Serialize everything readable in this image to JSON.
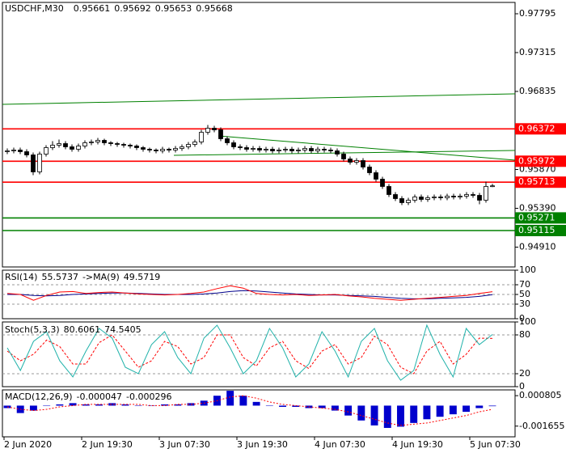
{
  "chart_data": {
    "type": "candlestick",
    "symbol": "USDCHF,M30",
    "ylim": [
      0.94665,
      0.97935
    ],
    "yticks": [
      0.97795,
      0.97315,
      0.96835,
      {
        "value": 0.9587,
        "label": "0.95870"
      },
      {
        "value": 0.9539,
        "label": "0.95390"
      },
      {
        "value": 0.9491,
        "label": "0.94910"
      }
    ],
    "time_labels": [
      "2 Jun 2020",
      "2 Jun 19:30",
      "3 Jun 07:30",
      "3 Jun 19:30",
      "4 Jun 07:30",
      "4 Jun 19:30",
      "5 Jun 07:30"
    ],
    "levels": [
      {
        "value": 0.96372,
        "color": "#ff0000"
      },
      {
        "value": 0.95972,
        "color": "#ff0000"
      },
      {
        "value": 0.95713,
        "color": "#ff0000"
      },
      {
        "value": 0.95271,
        "color": "#008000"
      },
      {
        "value": 0.95115,
        "color": "#008000"
      }
    ],
    "trend_lines": [
      {
        "from": 0.96675,
        "to": 0.96805,
        "color": "#008000"
      },
      {
        "from": 0.96285,
        "to": 0.95985,
        "color": "#008000"
      },
      {
        "from": 0.96045,
        "to": 0.96105,
        "color": "#008000"
      }
    ],
    "candles": [
      [
        0.9609,
        0.9613,
        0.9606,
        0.961
      ],
      [
        0.961,
        0.9614,
        0.9607,
        0.9611
      ],
      [
        0.9611,
        0.9614,
        0.9606,
        0.9609
      ],
      [
        0.9609,
        0.9612,
        0.9602,
        0.9605
      ],
      [
        0.9605,
        0.9608,
        0.958,
        0.9584
      ],
      [
        0.9584,
        0.9609,
        0.9581,
        0.9606
      ],
      [
        0.9606,
        0.9617,
        0.9603,
        0.9614
      ],
      [
        0.9614,
        0.9622,
        0.9611,
        0.9617
      ],
      [
        0.9617,
        0.9624,
        0.9614,
        0.9619
      ],
      [
        0.9619,
        0.9622,
        0.9612,
        0.9615
      ],
      [
        0.9615,
        0.9618,
        0.9609,
        0.9612
      ],
      [
        0.9612,
        0.9619,
        0.9609,
        0.9616
      ],
      [
        0.9616,
        0.9623,
        0.9613,
        0.962
      ],
      [
        0.962,
        0.9624,
        0.9617,
        0.9621
      ],
      [
        0.9621,
        0.9626,
        0.9618,
        0.9623
      ],
      [
        0.9623,
        0.9625,
        0.9617,
        0.962
      ],
      [
        0.962,
        0.9622,
        0.9616,
        0.9619
      ],
      [
        0.9619,
        0.9621,
        0.9615,
        0.9618
      ],
      [
        0.9618,
        0.962,
        0.9614,
        0.9617
      ],
      [
        0.9617,
        0.9619,
        0.9613,
        0.9616
      ],
      [
        0.9616,
        0.9618,
        0.9611,
        0.9614
      ],
      [
        0.9614,
        0.9616,
        0.9609,
        0.9612
      ],
      [
        0.9612,
        0.9614,
        0.9608,
        0.9611
      ],
      [
        0.9611,
        0.9613,
        0.9607,
        0.961
      ],
      [
        0.961,
        0.9615,
        0.9607,
        0.9612
      ],
      [
        0.9612,
        0.9614,
        0.9608,
        0.9611
      ],
      [
        0.9611,
        0.9616,
        0.9608,
        0.9613
      ],
      [
        0.9613,
        0.9618,
        0.961,
        0.9615
      ],
      [
        0.9615,
        0.9621,
        0.9612,
        0.9618
      ],
      [
        0.9618,
        0.9624,
        0.9615,
        0.9621
      ],
      [
        0.9621,
        0.9636,
        0.9618,
        0.9633
      ],
      [
        0.9633,
        0.9642,
        0.963,
        0.9638
      ],
      [
        0.9638,
        0.9641,
        0.9633,
        0.9636
      ],
      [
        0.9636,
        0.9639,
        0.9622,
        0.9625
      ],
      [
        0.9625,
        0.9628,
        0.9617,
        0.962
      ],
      [
        0.962,
        0.9623,
        0.9612,
        0.9615
      ],
      [
        0.9615,
        0.9618,
        0.9611,
        0.9614
      ],
      [
        0.9614,
        0.9617,
        0.9609,
        0.9612
      ],
      [
        0.9612,
        0.9616,
        0.9609,
        0.9613
      ],
      [
        0.9613,
        0.9616,
        0.9608,
        0.9611
      ],
      [
        0.9611,
        0.9615,
        0.9608,
        0.9612
      ],
      [
        0.9612,
        0.9615,
        0.9607,
        0.961
      ],
      [
        0.961,
        0.9614,
        0.9607,
        0.9611
      ],
      [
        0.9611,
        0.9615,
        0.9608,
        0.9612
      ],
      [
        0.9612,
        0.9615,
        0.9607,
        0.961
      ],
      [
        0.961,
        0.9614,
        0.9607,
        0.9611
      ],
      [
        0.9611,
        0.9616,
        0.9608,
        0.9613
      ],
      [
        0.9613,
        0.9616,
        0.9607,
        0.961
      ],
      [
        0.961,
        0.9615,
        0.9607,
        0.9612
      ],
      [
        0.9612,
        0.9615,
        0.9608,
        0.9611
      ],
      [
        0.9611,
        0.9614,
        0.9607,
        0.961
      ],
      [
        0.961,
        0.9613,
        0.9603,
        0.9606
      ],
      [
        0.9606,
        0.9609,
        0.9597,
        0.96
      ],
      [
        0.96,
        0.9603,
        0.9593,
        0.9596
      ],
      [
        0.9596,
        0.9601,
        0.9593,
        0.9598
      ],
      [
        0.9598,
        0.9601,
        0.9587,
        0.959
      ],
      [
        0.959,
        0.9593,
        0.958,
        0.9583
      ],
      [
        0.9583,
        0.9586,
        0.9572,
        0.9575
      ],
      [
        0.9575,
        0.9578,
        0.9563,
        0.9566
      ],
      [
        0.9566,
        0.9569,
        0.9553,
        0.9556
      ],
      [
        0.9556,
        0.9559,
        0.9548,
        0.9551
      ],
      [
        0.9551,
        0.9554,
        0.9543,
        0.9546
      ],
      [
        0.9546,
        0.9552,
        0.9543,
        0.9549
      ],
      [
        0.9549,
        0.9556,
        0.9546,
        0.9553
      ],
      [
        0.9553,
        0.9556,
        0.9547,
        0.955
      ],
      [
        0.955,
        0.9555,
        0.9547,
        0.9552
      ],
      [
        0.9552,
        0.9556,
        0.9549,
        0.9553
      ],
      [
        0.9553,
        0.9556,
        0.9549,
        0.9552
      ],
      [
        0.9552,
        0.9557,
        0.9549,
        0.9554
      ],
      [
        0.9554,
        0.9557,
        0.955,
        0.9553
      ],
      [
        0.9553,
        0.9557,
        0.955,
        0.9554
      ],
      [
        0.9554,
        0.9559,
        0.9551,
        0.9556
      ],
      [
        0.9556,
        0.9559,
        0.9552,
        0.9555
      ],
      [
        0.9555,
        0.9558,
        0.9544,
        0.9549
      ],
      [
        0.9549,
        0.9572,
        0.9546,
        0.9566
      ],
      [
        0.95661,
        0.95692,
        0.95653,
        0.95668
      ]
    ],
    "rsi": {
      "name": "RSI(14)",
      "ma_name": "->MA(9)",
      "color": "#ff0000",
      "ma_color": "#00008b",
      "ylim": [
        0,
        100
      ],
      "yticks": [
        100,
        70,
        50,
        30,
        0
      ],
      "levels": [
        70,
        50,
        30
      ],
      "values": [
        52,
        50,
        38,
        48,
        55,
        56,
        52,
        54,
        55,
        53,
        51,
        50,
        49,
        50,
        52,
        55,
        62,
        68,
        63,
        52,
        50,
        49,
        50,
        48,
        49,
        50,
        47,
        45,
        42,
        40,
        38,
        40,
        42,
        44,
        46,
        48,
        52,
        55.5737
      ],
      "ma": [
        50,
        50,
        48,
        47,
        48,
        50,
        51,
        52,
        53,
        53,
        52,
        51,
        50,
        50,
        50,
        51,
        53,
        56,
        58,
        57,
        55,
        53,
        51,
        50,
        49,
        49,
        48,
        47,
        46,
        44,
        42,
        41,
        41,
        42,
        43,
        44,
        46,
        49.5719
      ]
    },
    "stoch": {
      "name": "Stoch(5,3,3)",
      "color": "#20b2aa",
      "signal_color": "#ff0000",
      "ylim": [
        0,
        100
      ],
      "yticks": [
        100,
        80,
        20,
        0
      ],
      "levels": [
        80,
        20
      ],
      "main": [
        60,
        25,
        70,
        85,
        40,
        15,
        55,
        90,
        75,
        30,
        20,
        65,
        85,
        45,
        20,
        75,
        95,
        60,
        20,
        40,
        90,
        60,
        15,
        35,
        85,
        55,
        15,
        70,
        90,
        40,
        10,
        25,
        95,
        50,
        15,
        90,
        65,
        80.6061
      ],
      "signal": [
        55,
        40,
        50,
        72,
        62,
        35,
        35,
        68,
        80,
        55,
        30,
        40,
        70,
        62,
        35,
        45,
        80,
        80,
        45,
        32,
        60,
        70,
        40,
        28,
        55,
        65,
        35,
        45,
        78,
        65,
        30,
        20,
        55,
        70,
        35,
        50,
        75,
        74.5405
      ]
    },
    "macd": {
      "name": "MACD(12,26,9)",
      "color": "#0000cd",
      "signal_color": "#ff0000",
      "ylim": [
        -0.00252,
        0.00127
      ],
      "yticks": [
        0.000805,
        -0.001655
      ],
      "histogram": [
        -0.0002,
        -0.0006,
        -0.0004,
        0,
        0.0001,
        0.0002,
        0.0001,
        0.0001,
        0.0002,
        0.0001,
        0,
        0,
        0.0001,
        0.0001,
        0.0002,
        0.0004,
        0.0008,
        0.0012,
        0.0008,
        0.0003,
        0,
        -0.0001,
        -0.0001,
        -0.0002,
        -0.0002,
        -0.0004,
        -0.0008,
        -0.0012,
        -0.0016,
        -0.0018,
        -0.0017,
        -0.0014,
        -0.0011,
        -0.0009,
        -0.0007,
        -0.0005,
        -0.0002,
        -4.7e-05
      ],
      "signal": [
        -0.0001,
        -0.0003,
        -0.0004,
        -0.0003,
        -0.0001,
        0,
        0.0001,
        0.0001,
        0.0001,
        0.0001,
        0.0001,
        0,
        0,
        0.0001,
        0.0001,
        0.0002,
        0.0004,
        0.0007,
        0.0008,
        0.0006,
        0.0003,
        0.0001,
        0,
        -0.0001,
        -0.0002,
        -0.0003,
        -0.0005,
        -0.0008,
        -0.0011,
        -0.0014,
        -0.0016,
        -0.0015,
        -0.0014,
        -0.0012,
        -0.001,
        -0.0008,
        -0.0005,
        -0.000296
      ]
    }
  }
}
